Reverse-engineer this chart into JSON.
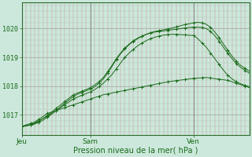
{
  "background_color": "#cce8dc",
  "plot_bg_color": "#cce8dc",
  "line_color": "#1a6b1a",
  "xlabel": "Pression niveau de la mer( hPa )",
  "ylim": [
    1016.3,
    1020.9
  ],
  "yticks": [
    1017,
    1018,
    1019,
    1020
  ],
  "xtick_labels": [
    "Jeu",
    "Sam",
    "Ven"
  ],
  "xtick_positions": [
    0,
    16,
    40
  ],
  "total_points": 54,
  "series1_x": [
    0,
    1,
    2,
    3,
    4,
    5,
    6,
    7,
    8,
    9,
    10,
    11,
    12,
    13,
    14,
    15,
    16,
    17,
    18,
    19,
    20,
    21,
    22,
    23,
    24,
    25,
    26,
    27,
    28,
    29,
    30,
    31,
    32,
    33,
    34,
    35,
    36,
    37,
    38,
    39,
    40,
    41,
    42,
    43,
    44,
    45,
    46,
    47,
    48,
    49,
    50,
    51,
    52,
    53
  ],
  "series1_y": [
    1016.6,
    1016.65,
    1016.7,
    1016.75,
    1016.85,
    1016.95,
    1017.05,
    1017.1,
    1017.15,
    1017.2,
    1017.25,
    1017.3,
    1017.35,
    1017.4,
    1017.45,
    1017.5,
    1017.55,
    1017.6,
    1017.65,
    1017.7,
    1017.73,
    1017.76,
    1017.79,
    1017.82,
    1017.85,
    1017.88,
    1017.91,
    1017.94,
    1017.97,
    1018.0,
    1018.03,
    1018.06,
    1018.09,
    1018.12,
    1018.15,
    1018.17,
    1018.19,
    1018.21,
    1018.23,
    1018.25,
    1018.27,
    1018.28,
    1018.29,
    1018.3,
    1018.28,
    1018.26,
    1018.24,
    1018.22,
    1018.2,
    1018.15,
    1018.1,
    1018.05,
    1018.0,
    1017.95
  ],
  "series2_x": [
    0,
    1,
    2,
    3,
    4,
    5,
    6,
    7,
    8,
    9,
    10,
    11,
    12,
    13,
    14,
    15,
    16,
    17,
    18,
    19,
    20,
    21,
    22,
    23,
    24,
    25,
    26,
    27,
    28,
    29,
    30,
    31,
    32,
    33,
    34,
    35,
    36,
    37,
    38,
    39,
    40,
    41,
    42,
    43,
    44,
    45,
    46,
    47,
    48,
    49,
    50,
    51,
    52,
    53
  ],
  "series2_y": [
    1016.6,
    1016.62,
    1016.66,
    1016.72,
    1016.8,
    1016.88,
    1016.96,
    1017.05,
    1017.15,
    1017.25,
    1017.35,
    1017.45,
    1017.55,
    1017.62,
    1017.68,
    1017.74,
    1017.8,
    1017.88,
    1017.98,
    1018.1,
    1018.25,
    1018.4,
    1018.6,
    1018.8,
    1019.0,
    1019.15,
    1019.28,
    1019.4,
    1019.5,
    1019.58,
    1019.65,
    1019.7,
    1019.74,
    1019.77,
    1019.79,
    1019.8,
    1019.8,
    1019.79,
    1019.78,
    1019.77,
    1019.76,
    1019.65,
    1019.5,
    1019.35,
    1019.15,
    1018.95,
    1018.75,
    1018.55,
    1018.38,
    1018.25,
    1018.15,
    1018.08,
    1018.03,
    1017.98
  ],
  "series3_x": [
    0,
    1,
    2,
    3,
    4,
    5,
    6,
    7,
    8,
    9,
    10,
    11,
    12,
    13,
    14,
    15,
    16,
    17,
    18,
    19,
    20,
    21,
    22,
    23,
    24,
    25,
    26,
    27,
    28,
    29,
    30,
    31,
    32,
    33,
    34,
    35,
    36,
    37,
    38,
    39,
    40,
    41,
    42,
    43,
    44,
    45,
    46,
    47,
    48,
    49,
    50,
    51,
    52,
    53
  ],
  "series3_y": [
    1016.6,
    1016.62,
    1016.65,
    1016.7,
    1016.78,
    1016.88,
    1016.98,
    1017.1,
    1017.22,
    1017.34,
    1017.46,
    1017.58,
    1017.7,
    1017.76,
    1017.82,
    1017.88,
    1017.95,
    1018.04,
    1018.16,
    1018.3,
    1018.5,
    1018.72,
    1018.95,
    1019.15,
    1019.32,
    1019.46,
    1019.58,
    1019.67,
    1019.74,
    1019.8,
    1019.85,
    1019.88,
    1019.9,
    1019.92,
    1019.94,
    1019.96,
    1019.98,
    1020.0,
    1020.02,
    1020.04,
    1020.05,
    1020.05,
    1020.04,
    1020.0,
    1019.9,
    1019.75,
    1019.56,
    1019.35,
    1019.14,
    1018.95,
    1018.78,
    1018.65,
    1018.55,
    1018.45
  ],
  "series4_x": [
    0,
    1,
    2,
    3,
    4,
    5,
    6,
    7,
    8,
    9,
    10,
    11,
    12,
    13,
    14,
    15,
    16,
    17,
    18,
    19,
    20,
    21,
    22,
    23,
    24,
    25,
    26,
    27,
    28,
    29,
    30,
    31,
    32,
    33,
    34,
    35,
    36,
    37,
    38,
    39,
    40,
    41,
    42,
    43,
    44,
    45,
    46,
    47,
    48,
    49,
    50,
    51,
    52,
    53
  ],
  "series4_y": [
    1016.6,
    1016.62,
    1016.65,
    1016.68,
    1016.74,
    1016.82,
    1016.92,
    1017.03,
    1017.15,
    1017.27,
    1017.4,
    1017.52,
    1017.64,
    1017.72,
    1017.78,
    1017.84,
    1017.9,
    1017.98,
    1018.1,
    1018.25,
    1018.45,
    1018.68,
    1018.92,
    1019.12,
    1019.3,
    1019.44,
    1019.56,
    1019.65,
    1019.73,
    1019.8,
    1019.86,
    1019.9,
    1019.93,
    1019.96,
    1019.99,
    1020.02,
    1020.06,
    1020.1,
    1020.14,
    1020.17,
    1020.2,
    1020.22,
    1020.2,
    1020.15,
    1020.04,
    1019.88,
    1019.68,
    1019.46,
    1019.24,
    1019.04,
    1018.86,
    1018.72,
    1018.62,
    1018.52
  ]
}
